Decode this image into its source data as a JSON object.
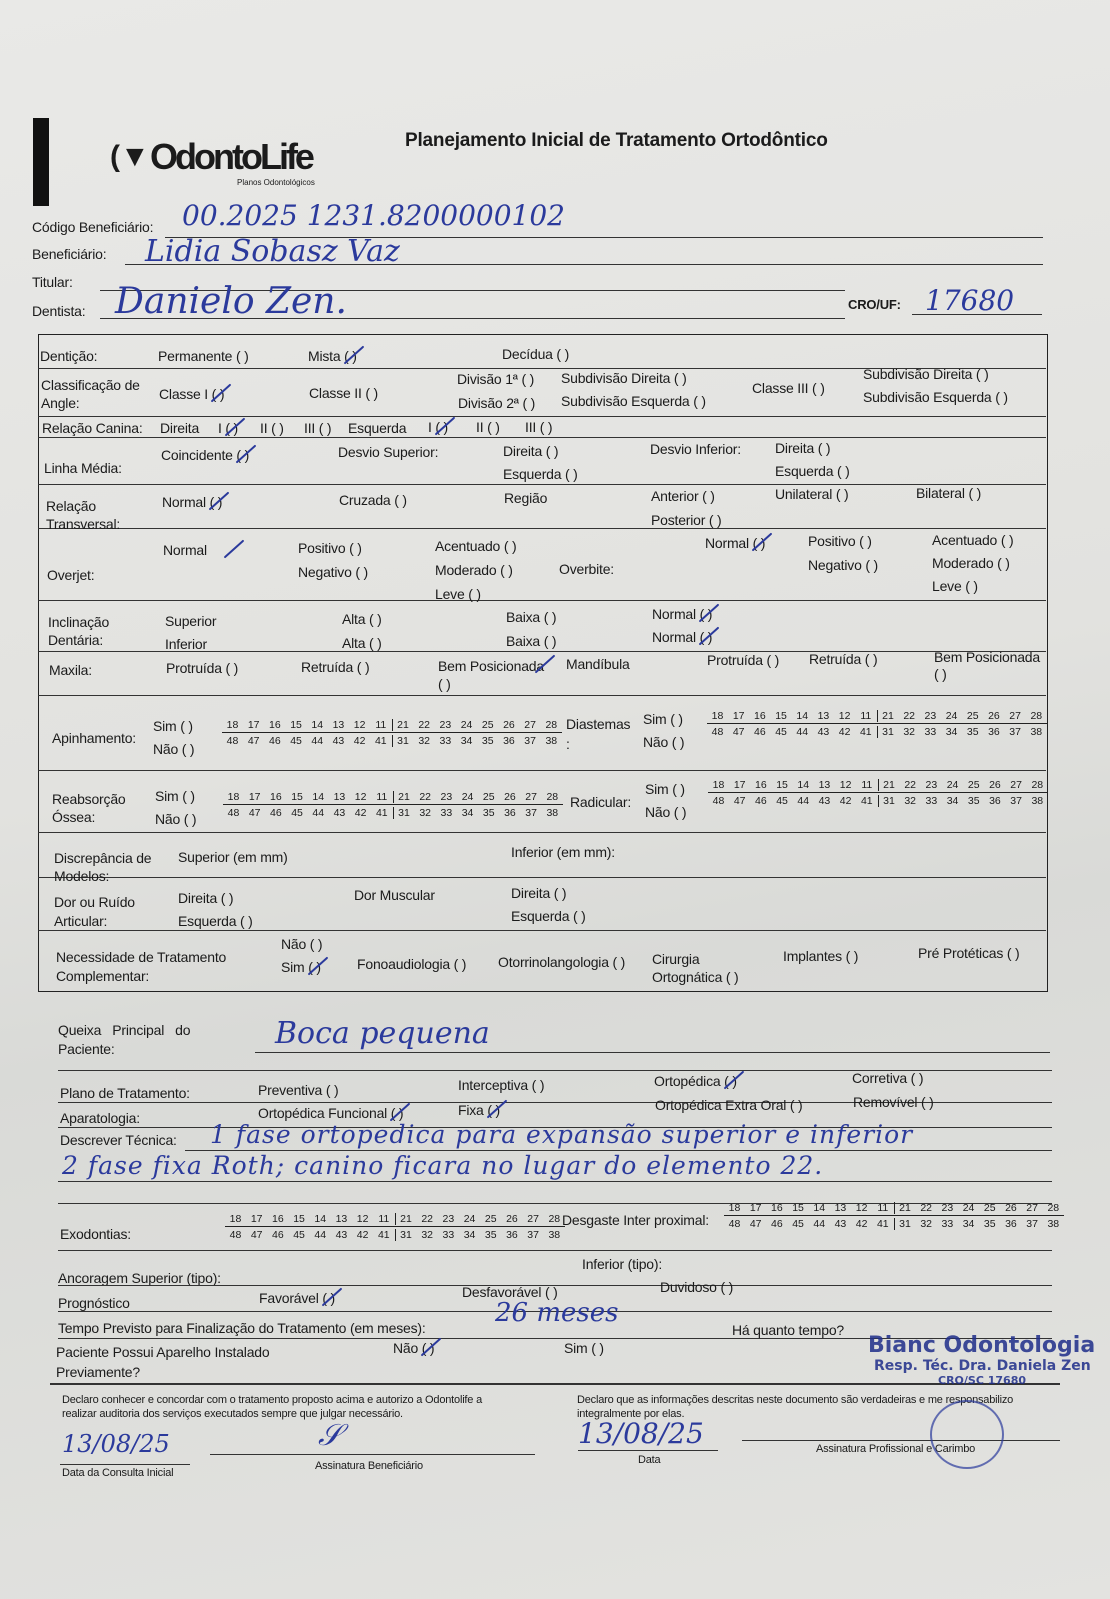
{
  "header": {
    "logo": "OdontoLife",
    "logo_sub": "Planos Odontológicos",
    "title": "Planejamento Inicial de Tratamento Ortodôntico"
  },
  "fields": {
    "codigo_label": "Código Beneficiário:",
    "codigo_value": "00.2025 1231.8200000102",
    "beneficiario_label": "Beneficiário:",
    "beneficiario_value": "Lidia Sobasz Vaz",
    "titular_label": "Titular:",
    "dentista_label": "Dentista:",
    "dentista_value": "Danielo Zen.",
    "cro_label": "CRO/UF:",
    "cro_value": "17680"
  },
  "teeth": {
    "upper": [
      "18",
      "17",
      "16",
      "15",
      "14",
      "13",
      "12",
      "11",
      "21",
      "22",
      "23",
      "24",
      "25",
      "26",
      "27",
      "28"
    ],
    "lower": [
      "48",
      "47",
      "46",
      "45",
      "44",
      "43",
      "42",
      "41",
      "31",
      "32",
      "33",
      "34",
      "35",
      "36",
      "37",
      "38"
    ]
  },
  "table": {
    "denticao": {
      "label": "Dentição:",
      "items": [
        {
          "label": "Permanente ( )",
          "checked": false
        },
        {
          "label": "Mista ( )",
          "checked": true
        },
        {
          "label": "Decídua ( )",
          "checked": false
        }
      ]
    },
    "angle": {
      "label1": "Classificação de",
      "label2": "Angle:",
      "items": [
        {
          "label": "Classe I ( )",
          "checked": true
        },
        {
          "label": "Classe II ( )",
          "checked": false
        },
        {
          "label": "Divisão 1ª ( )",
          "checked": false
        },
        {
          "label": "Subdivisão Direita ( )",
          "checked": false
        },
        {
          "label": "Divisão 2ª ( )",
          "checked": false
        },
        {
          "label": "Subdivisão Esquerda ( )",
          "checked": false
        },
        {
          "label": "Classe III ( )",
          "checked": false
        },
        {
          "label": "Subdivisão Direita ( )",
          "checked": false
        },
        {
          "label": "Subdivisão Esquerda ( )",
          "checked": false
        }
      ]
    },
    "canina": {
      "label": "Relação Canina:",
      "direita": "Direita",
      "esquerda": "Esquerda",
      "items": [
        {
          "label": "I ( )",
          "checked": true
        },
        {
          "label": "II ( )",
          "checked": false
        },
        {
          "label": "III ( )",
          "checked": false
        },
        {
          "label": "I ( )",
          "checked": true
        },
        {
          "label": "II ( )",
          "checked": false
        },
        {
          "label": "III ( )",
          "checked": false
        }
      ]
    },
    "linha": {
      "label": "Linha Média:",
      "desvio_sup": "Desvio Superior:",
      "desvio_inf": "Desvio Inferior:",
      "items": [
        {
          "label": "Coincidente ( )",
          "checked": true
        },
        {
          "label": "Direita ( )",
          "checked": false
        },
        {
          "label": "Esquerda ( )",
          "checked": false
        },
        {
          "label": "Direita ( )",
          "checked": false
        },
        {
          "label": "Esquerda ( )",
          "checked": false
        }
      ]
    },
    "transversal": {
      "label1": "Relação",
      "label2": "Transversal:",
      "regiao": "Região",
      "items": [
        {
          "label": "Normal ( )",
          "checked": true
        },
        {
          "label": "Cruzada ( )",
          "checked": false
        },
        {
          "label": "Anterior ( )",
          "checked": false
        },
        {
          "label": "Posterior ( )",
          "checked": false
        },
        {
          "label": "Unilateral ( )",
          "checked": false
        },
        {
          "label": "Bilateral ( )",
          "checked": false
        }
      ]
    },
    "overjet": {
      "label": "Overjet:",
      "overbite": "Overbite:",
      "items": [
        {
          "label": "Normal",
          "checked": true
        },
        {
          "label": "Positivo ( )",
          "checked": false
        },
        {
          "label": "Negativo ( )",
          "checked": false
        },
        {
          "label": "Acentuado ( )",
          "checked": false
        },
        {
          "label": "Moderado ( )",
          "checked": false
        },
        {
          "label": "Leve ( )",
          "checked": false
        }
      ],
      "overbite_items": [
        {
          "label": "Normal ( )",
          "checked": true
        },
        {
          "label": "Positivo ( )",
          "checked": false
        },
        {
          "label": "Negativo ( )",
          "checked": false
        },
        {
          "label": "Acentuado ( )",
          "checked": false
        },
        {
          "label": "Moderado ( )",
          "checked": false
        },
        {
          "label": "Leve ( )",
          "checked": false
        }
      ]
    },
    "inclinacao": {
      "label1": "Inclinação",
      "label2": "Dentária:",
      "superior": "Superior",
      "inferior": "Inferior",
      "items": [
        {
          "label": "Alta ( )",
          "checked": false
        },
        {
          "label": "Baixa ( )",
          "checked": false
        },
        {
          "label": "Normal ( )",
          "checked": true
        },
        {
          "label": "Alta ( )",
          "checked": false
        },
        {
          "label": "Baixa ( )",
          "checked": false
        },
        {
          "label": "Normal ( )",
          "checked": true
        }
      ]
    },
    "maxila": {
      "label": "Maxila:",
      "mandibula": "Mandíbula",
      "items": [
        {
          "label": "Protruída ( )",
          "checked": false
        },
        {
          "label": "Retruída ( )",
          "checked": false
        },
        {
          "label": "Bem Posicionada ( )",
          "checked": true
        },
        {
          "label": "Protruída ( )",
          "checked": false
        },
        {
          "label": "Retruída ( )",
          "checked": false
        },
        {
          "label": "Bem Posicionada ( )",
          "checked": false
        }
      ]
    },
    "apinhamento": {
      "label": "Apinhamento:",
      "sim": "Sim ( )",
      "nao": "Não ( )",
      "diastemas": "Diastemas :"
    },
    "reabsorcao": {
      "label1": "Reabsorção",
      "label2": "Óssea:",
      "sim": "Sim ( )",
      "nao": "Não ( )",
      "radicular": "Radicular:"
    },
    "discrepancia": {
      "label1": "Discrepância de",
      "label2": "Modelos:",
      "superior": "Superior (em mm)",
      "inferior": "Inferior (em mm):"
    },
    "dor": {
      "label1": "Dor ou Ruído",
      "label2": "Articular:",
      "direita": "Direita ( )",
      "esquerda": "Esquerda ( )",
      "muscular": "Dor Muscular"
    },
    "necessidade": {
      "label1": "Necessidade de Tratamento",
      "label2": "Complementar:",
      "items": [
        {
          "label": "Não ( )",
          "checked": false
        },
        {
          "label": "Sim ( )",
          "checked": true
        },
        {
          "label": "Fonoaudiologia ( )",
          "checked": false
        },
        {
          "label": "Otorrinolangologia ( )",
          "checked": false
        },
        {
          "label": "Cirurgia",
          "checked": false
        },
        {
          "label": "Ortognática ( )",
          "checked": false
        },
        {
          "label": "Implantes ( )",
          "checked": false
        },
        {
          "label": "Pré Protéticas ( )",
          "checked": false
        }
      ]
    }
  },
  "lower": {
    "queixa_label1": "Queixa   Principal   do",
    "queixa_label2": "Paciente:",
    "queixa_value": "Boca pequena",
    "plano_label": "Plano de Tratamento:",
    "plano": [
      {
        "label": "Preventiva ( )",
        "checked": false
      },
      {
        "label": "Interceptiva ( )",
        "checked": false
      },
      {
        "label": "Ortopédica ( )",
        "checked": true
      },
      {
        "label": "Corretiva ( )",
        "checked": false
      }
    ],
    "aparatologia_label": "Aparatologia:",
    "aparatologia": [
      {
        "label": "Ortopédica Funcional ( )",
        "checked": true
      },
      {
        "label": "Fixa ( )",
        "checked": true
      },
      {
        "label": "Ortopédica Extra Oral ( )",
        "checked": false
      },
      {
        "label": "Removível ( )",
        "checked": false
      }
    ],
    "tecnica_label": "Descrever Técnica:",
    "tecnica_line1": "1 fase ortopedica para expansão superior e inferior",
    "tecnica_line2": "2 fase fixa Roth; canino ficara no lugar do elemento 22.",
    "exodontias_label": "Exodontias:",
    "desgaste_label": "Desgaste Inter proximal:",
    "ancoragem_label": "Ancoragem Superior (tipo):",
    "inferior_label": "Inferior (tipo):",
    "prognostico_label": "Prognóstico",
    "prognostico": [
      {
        "label": "Favorável ( )",
        "checked": true
      },
      {
        "label": "Desfavorável ( )",
        "checked": false
      },
      {
        "label": "Duvidoso ( )",
        "checked": false
      }
    ],
    "tempo_label": "Tempo Previsto para Finalização do Tratamento (em meses):",
    "tempo_value": "26 meses",
    "aparelho_label1": "Paciente Possui Aparelho Instalado",
    "aparelho_label2": "Previamente?",
    "aparelho": [
      {
        "label": "Não ( )",
        "checked": true
      },
      {
        "label": "Sim ( )",
        "checked": false
      }
    ],
    "ha_quanto": "Há quanto tempo?"
  },
  "footer": {
    "declaro_left1": "Declaro conhecer e concordar com o tratamento proposto acima e autorizo a Odontolife a",
    "declaro_left2": "realizar auditoria dos serviços executados sempre que julgar necessário.",
    "date_left": "13/08/25",
    "date_left_label": "Data da Consulta Inicial",
    "sign_left_label": "Assinatura Beneficiário",
    "declaro_right1": "Declaro que as informações descritas neste documento são verdadeiras e me responsabilizo",
    "declaro_right2": "integralmente por elas.",
    "date_right": "13/08/25",
    "date_right_label": "Data",
    "sign_right_label": "Assinatura Profissional e Carimbo",
    "stamp1": "Bianc Odontologia",
    "stamp2": "Resp. Téc. Dra. Daniela Zen",
    "stamp3": "CRO/SC 17680"
  }
}
